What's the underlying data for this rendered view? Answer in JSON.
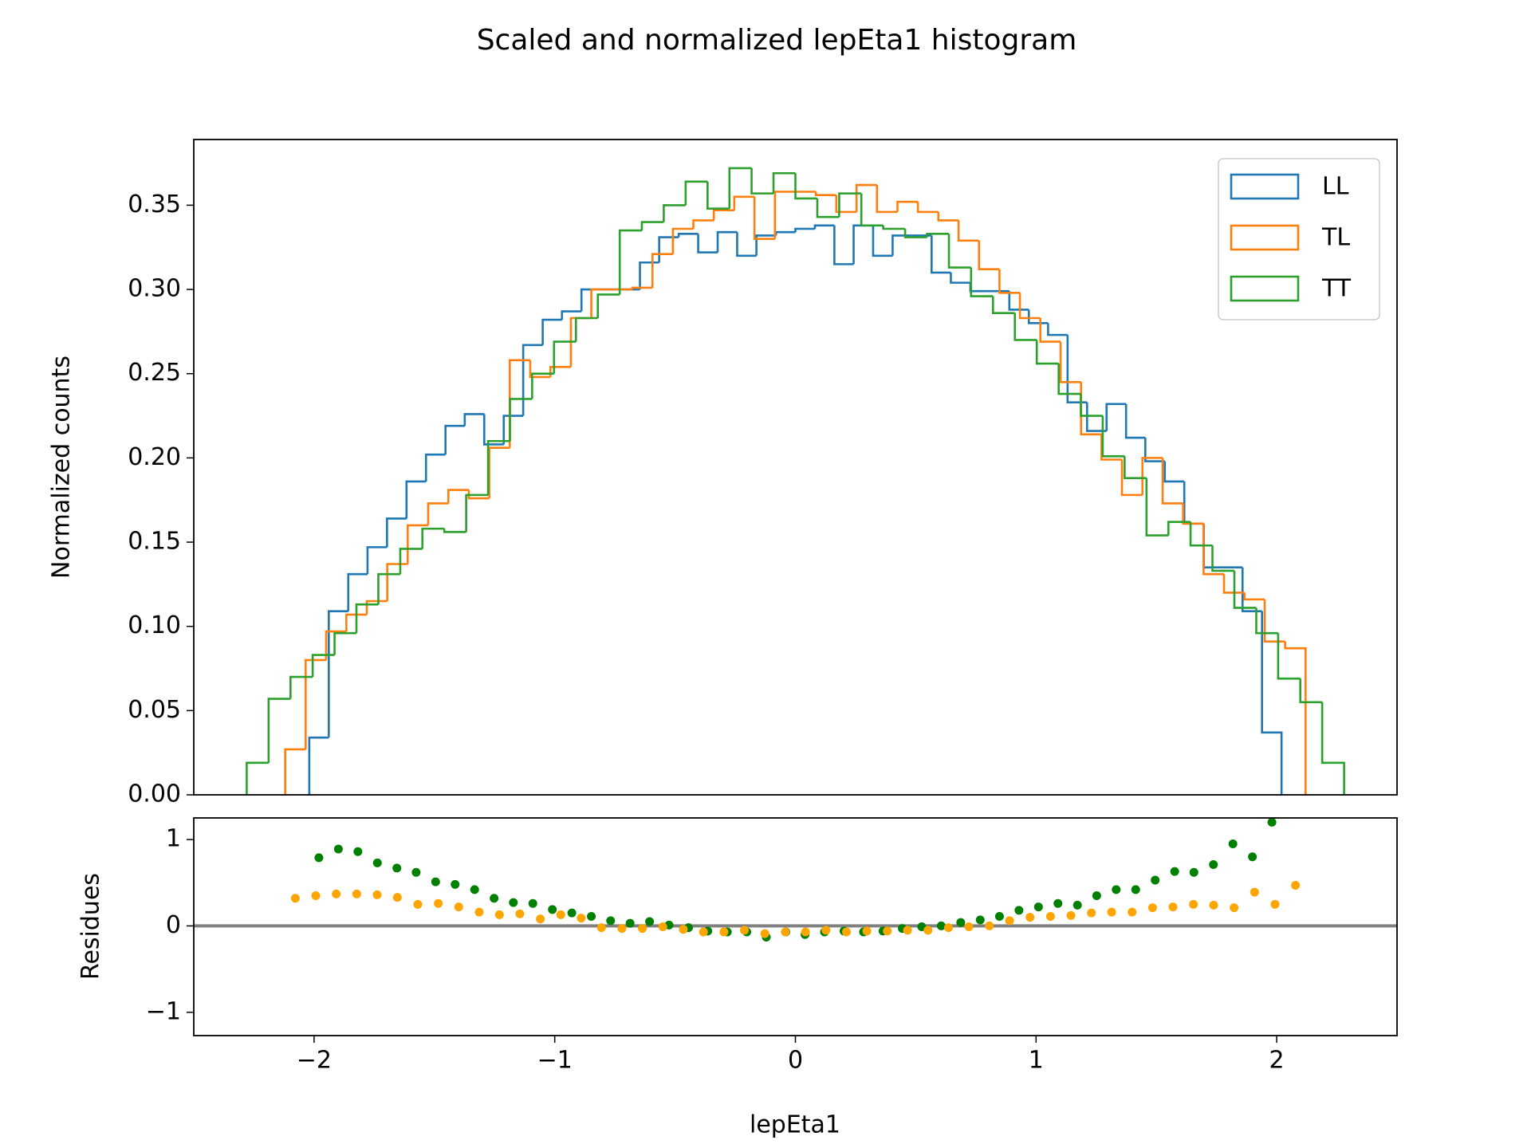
{
  "chart_data": [
    {
      "type": "histogram",
      "title": "Scaled and normalized lepEta1 histogram",
      "ylabel": "Normalized counts",
      "xlim": [
        -2.5,
        2.5
      ],
      "ylim": [
        0,
        0.389
      ],
      "yticks": [
        {
          "value": 0,
          "label": "0.00"
        },
        {
          "value": 0.05,
          "label": "0.05"
        },
        {
          "value": 0.1,
          "label": "0.10"
        },
        {
          "value": 0.15,
          "label": "0.15"
        },
        {
          "value": 0.2,
          "label": "0.20"
        },
        {
          "value": 0.25,
          "label": "0.25"
        },
        {
          "value": 0.3,
          "label": "0.30"
        },
        {
          "value": 0.35,
          "label": "0.35"
        }
      ],
      "legend": "upper right",
      "series": [
        {
          "name": "LL",
          "color": "#1f77b4",
          "bins": [
            -2.02,
            -1.939,
            -1.858,
            -1.778,
            -1.697,
            -1.616,
            -1.535,
            -1.454,
            -1.374,
            -1.293,
            -1.212,
            -1.131,
            -1.05,
            -0.97,
            -0.889,
            -0.808,
            -0.727,
            -0.646,
            -0.566,
            -0.485,
            -0.404,
            -0.323,
            -0.242,
            -0.162,
            -0.081,
            0,
            0.081,
            0.162,
            0.242,
            0.323,
            0.404,
            0.485,
            0.566,
            0.646,
            0.727,
            0.808,
            0.889,
            0.97,
            1.05,
            1.131,
            1.212,
            1.293,
            1.374,
            1.454,
            1.535,
            1.616,
            1.697,
            1.778,
            1.858,
            1.939,
            2.02
          ],
          "values": [
            0.034,
            0.109,
            0.131,
            0.147,
            0.164,
            0.186,
            0.202,
            0.219,
            0.226,
            0.208,
            0.225,
            0.267,
            0.282,
            0.287,
            0.3,
            0.3,
            0.3,
            0.316,
            0.331,
            0.333,
            0.322,
            0.334,
            0.32,
            0.332,
            0.334,
            0.336,
            0.338,
            0.315,
            0.338,
            0.32,
            0.332,
            0.332,
            0.31,
            0.304,
            0.299,
            0.299,
            0.288,
            0.28,
            0.273,
            0.233,
            0.216,
            0.232,
            0.212,
            0.198,
            0.186,
            0.161,
            0.135,
            0.135,
            0.109,
            0.037
          ]
        },
        {
          "name": "TL",
          "color": "#ff7f0e",
          "bins": [
            -2.12,
            -2.035,
            -1.95,
            -1.866,
            -1.781,
            -1.696,
            -1.611,
            -1.526,
            -1.442,
            -1.357,
            -1.272,
            -1.187,
            -1.102,
            -1.018,
            -0.933,
            -0.848,
            -0.763,
            -0.678,
            -0.594,
            -0.509,
            -0.424,
            -0.339,
            -0.254,
            -0.17,
            -0.085,
            0,
            0.085,
            0.17,
            0.254,
            0.339,
            0.424,
            0.509,
            0.594,
            0.678,
            0.763,
            0.848,
            0.933,
            1.018,
            1.102,
            1.187,
            1.272,
            1.357,
            1.442,
            1.526,
            1.611,
            1.696,
            1.781,
            1.866,
            1.95,
            2.035,
            2.12
          ],
          "values": [
            0.027,
            0.08,
            0.097,
            0.107,
            0.115,
            0.137,
            0.16,
            0.173,
            0.181,
            0.176,
            0.206,
            0.258,
            0.248,
            0.254,
            0.283,
            0.3,
            0.3,
            0.301,
            0.321,
            0.336,
            0.341,
            0.347,
            0.355,
            0.33,
            0.358,
            0.358,
            0.356,
            0.346,
            0.362,
            0.346,
            0.352,
            0.346,
            0.341,
            0.329,
            0.312,
            0.298,
            0.283,
            0.269,
            0.245,
            0.214,
            0.199,
            0.178,
            0.2,
            0.173,
            0.161,
            0.131,
            0.12,
            0.116,
            0.091,
            0.087
          ]
        },
        {
          "name": "TT",
          "color": "#2ca02c",
          "bins": [
            -2.28,
            -2.189,
            -2.098,
            -2.006,
            -1.915,
            -1.824,
            -1.733,
            -1.642,
            -1.55,
            -1.459,
            -1.368,
            -1.277,
            -1.186,
            -1.094,
            -1.003,
            -0.912,
            -0.821,
            -0.73,
            -0.638,
            -0.547,
            -0.456,
            -0.365,
            -0.274,
            -0.182,
            -0.091,
            0,
            0.091,
            0.182,
            0.274,
            0.365,
            0.456,
            0.547,
            0.638,
            0.73,
            0.821,
            0.912,
            1.003,
            1.094,
            1.186,
            1.277,
            1.368,
            1.459,
            1.55,
            1.642,
            1.733,
            1.824,
            1.915,
            2.006,
            2.098,
            2.189,
            2.28
          ],
          "values": [
            0.019,
            0.057,
            0.07,
            0.083,
            0.096,
            0.113,
            0.131,
            0.146,
            0.158,
            0.156,
            0.178,
            0.21,
            0.235,
            0.25,
            0.269,
            0.283,
            0.297,
            0.335,
            0.34,
            0.35,
            0.364,
            0.348,
            0.372,
            0.357,
            0.369,
            0.354,
            0.343,
            0.357,
            0.338,
            0.336,
            0.331,
            0.333,
            0.313,
            0.296,
            0.286,
            0.27,
            0.256,
            0.238,
            0.225,
            0.201,
            0.188,
            0.154,
            0.162,
            0.148,
            0.133,
            0.111,
            0.096,
            0.069,
            0.055,
            0.019
          ]
        }
      ]
    },
    {
      "type": "scatter",
      "xlabel": "lepEta1",
      "ylabel": "Residues",
      "xlim": [
        -2.5,
        2.5
      ],
      "ylim": [
        -1.27,
        1.25
      ],
      "hline": 0,
      "xticks": [
        {
          "value": -2,
          "label": "−2"
        },
        {
          "value": -1,
          "label": "−1"
        },
        0,
        1,
        2
      ],
      "yticks": [
        {
          "value": -1,
          "label": "−1"
        },
        0,
        1
      ],
      "series": [
        {
          "color": "green",
          "x": [
            -1.98,
            -1.899,
            -1.818,
            -1.737,
            -1.656,
            -1.576,
            -1.495,
            -1.414,
            -1.333,
            -1.252,
            -1.172,
            -1.091,
            -1.01,
            -0.929,
            -0.848,
            -0.768,
            -0.687,
            -0.606,
            -0.525,
            -0.444,
            -0.364,
            -0.283,
            -0.202,
            -0.121,
            -0.04,
            0.04,
            0.121,
            0.202,
            0.283,
            0.364,
            0.444,
            0.525,
            0.606,
            0.687,
            0.768,
            0.848,
            0.929,
            1.01,
            1.091,
            1.172,
            1.252,
            1.333,
            1.414,
            1.495,
            1.576,
            1.656,
            1.737,
            1.818,
            1.899,
            1.98
          ],
          "values": [
            0.79,
            0.89,
            0.86,
            0.73,
            0.67,
            0.62,
            0.51,
            0.48,
            0.42,
            0.32,
            0.27,
            0.26,
            0.19,
            0.15,
            0.11,
            0.06,
            0.03,
            0.05,
            0.01,
            -0.02,
            -0.06,
            -0.07,
            -0.07,
            -0.13,
            -0.07,
            -0.1,
            -0.07,
            -0.06,
            -0.07,
            -0.06,
            -0.03,
            -0.01,
            0,
            0.04,
            0.07,
            0.11,
            0.18,
            0.22,
            0.26,
            0.24,
            0.35,
            0.42,
            0.42,
            0.53,
            0.63,
            0.62,
            0.71,
            0.95,
            0.8,
            1.2
          ]
        },
        {
          "color": "orange",
          "x": [
            -2.078,
            -1.993,
            -1.908,
            -1.823,
            -1.738,
            -1.654,
            -1.569,
            -1.484,
            -1.399,
            -1.314,
            -1.23,
            -1.145,
            -1.06,
            -0.975,
            -0.89,
            -0.806,
            -0.721,
            -0.636,
            -0.551,
            -0.466,
            -0.382,
            -0.297,
            -0.212,
            -0.127,
            -0.042,
            0.042,
            0.127,
            0.212,
            0.297,
            0.382,
            0.466,
            0.551,
            0.636,
            0.721,
            0.806,
            0.89,
            0.975,
            1.06,
            1.145,
            1.23,
            1.314,
            1.399,
            1.484,
            1.569,
            1.654,
            1.738,
            1.823,
            1.908,
            1.993,
            2.078
          ],
          "values": [
            0.32,
            0.35,
            0.37,
            0.37,
            0.36,
            0.33,
            0.25,
            0.26,
            0.22,
            0.16,
            0.13,
            0.14,
            0.08,
            0.13,
            0.09,
            -0.02,
            -0.03,
            -0.03,
            -0.01,
            -0.04,
            -0.07,
            -0.07,
            -0.05,
            -0.09,
            -0.07,
            -0.07,
            -0.05,
            -0.07,
            -0.06,
            -0.06,
            -0.05,
            -0.05,
            -0.02,
            -0.01,
            0,
            0.06,
            0.1,
            0.11,
            0.12,
            0.15,
            0.16,
            0.16,
            0.21,
            0.22,
            0.25,
            0.24,
            0.21,
            0.39,
            0.25,
            0.47
          ]
        }
      ]
    }
  ]
}
